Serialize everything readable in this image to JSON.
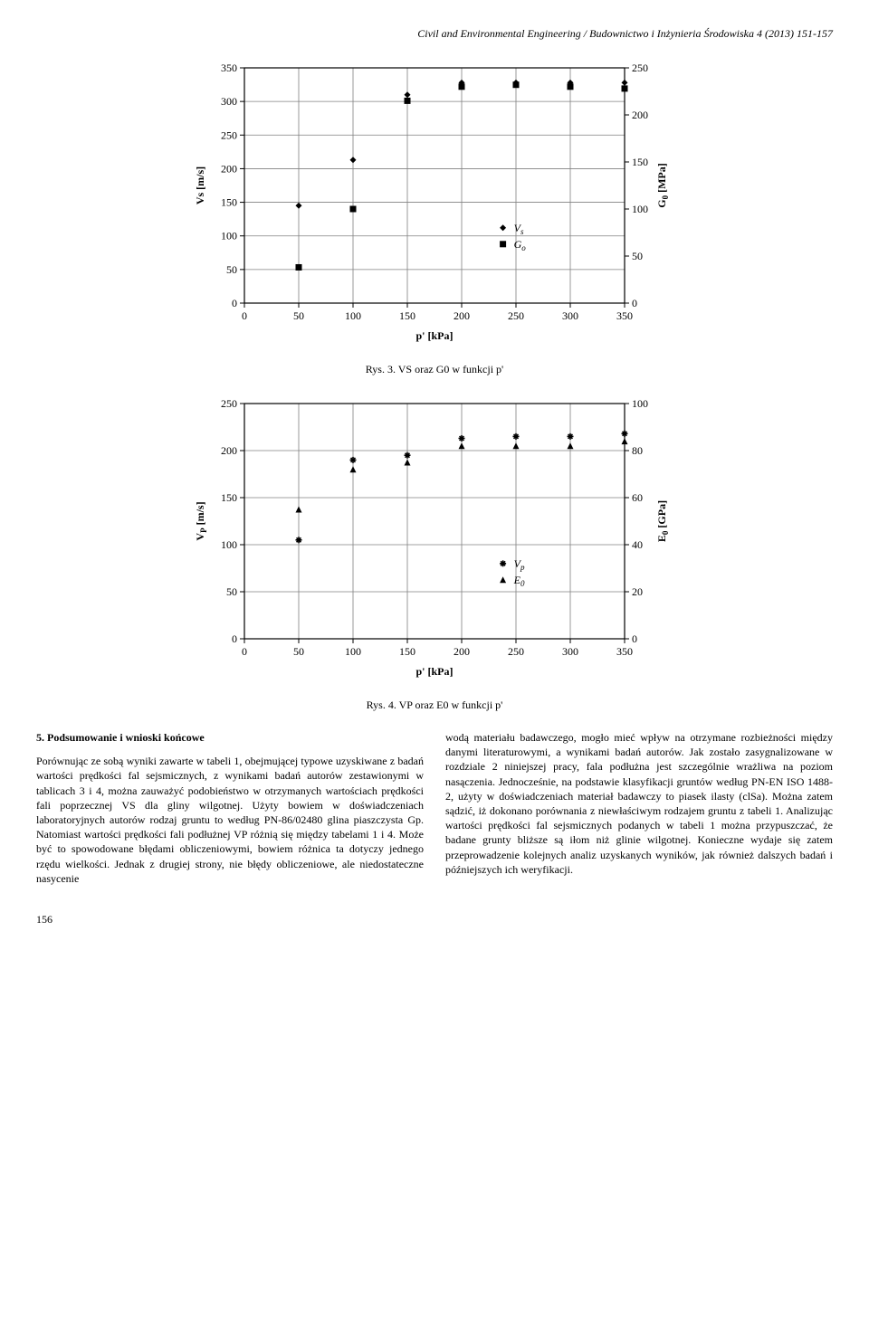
{
  "header": "Civil and Environmental Engineering / Budownictwo i Inżynieria Środowiska  4 (2013) 151-157",
  "fig3": {
    "caption": "Rys. 3. VS oraz G0 w funkcji p'",
    "xlabel": "p' [kPa]",
    "ylabel_left": "Vs [m/s]",
    "ylabel_right": "G0 [MPa]",
    "xlim": [
      0,
      350
    ],
    "xticks": [
      0,
      50,
      100,
      150,
      200,
      250,
      300,
      350
    ],
    "ylim_left": [
      0,
      350
    ],
    "yticks_left": [
      0,
      50,
      100,
      150,
      200,
      250,
      300,
      350
    ],
    "ylim_right": [
      0,
      250
    ],
    "yticks_right": [
      0,
      50,
      100,
      150,
      200,
      250
    ],
    "legend": {
      "vs": "Vs",
      "go": "Go"
    },
    "font_size_axis": 12,
    "font_size_ticks": 12,
    "grid_color": "#808080",
    "border_color": "#000000",
    "bg_color": "#ffffff",
    "vs_points": [
      {
        "x": 50,
        "y": 145
      },
      {
        "x": 100,
        "y": 213
      },
      {
        "x": 150,
        "y": 310
      },
      {
        "x": 200,
        "y": 328
      },
      {
        "x": 250,
        "y": 328
      },
      {
        "x": 300,
        "y": 328
      },
      {
        "x": 350,
        "y": 328
      }
    ],
    "go_points_right": [
      {
        "x": 50,
        "y": 38
      },
      {
        "x": 100,
        "y": 100
      },
      {
        "x": 150,
        "y": 215
      },
      {
        "x": 200,
        "y": 230
      },
      {
        "x": 250,
        "y": 232
      },
      {
        "x": 300,
        "y": 230
      },
      {
        "x": 350,
        "y": 228
      }
    ],
    "marker_size": 7
  },
  "fig4": {
    "caption": "Rys. 4. VP oraz E0 w funkcji p'",
    "xlabel": "p' [kPa]",
    "ylabel_left": "VP [m/s]",
    "ylabel_right": "E0 [GPa]",
    "xlim": [
      0,
      350
    ],
    "xticks": [
      0,
      50,
      100,
      150,
      200,
      250,
      300,
      350
    ],
    "ylim_left": [
      0,
      250
    ],
    "yticks_left": [
      0,
      50,
      100,
      150,
      200,
      250
    ],
    "ylim_right": [
      0,
      100
    ],
    "yticks_right": [
      0,
      20,
      40,
      60,
      80,
      100
    ],
    "legend": {
      "vp": "Vp",
      "e0": "E0"
    },
    "font_size_axis": 12,
    "font_size_ticks": 12,
    "grid_color": "#808080",
    "border_color": "#000000",
    "bg_color": "#ffffff",
    "vp_points": [
      {
        "x": 50,
        "y": 105
      },
      {
        "x": 100,
        "y": 190
      },
      {
        "x": 150,
        "y": 195
      },
      {
        "x": 200,
        "y": 213
      },
      {
        "x": 250,
        "y": 215
      },
      {
        "x": 300,
        "y": 215
      },
      {
        "x": 350,
        "y": 218
      }
    ],
    "e0_points_right": [
      {
        "x": 50,
        "y": 55
      },
      {
        "x": 100,
        "y": 72
      },
      {
        "x": 150,
        "y": 75
      },
      {
        "x": 200,
        "y": 82
      },
      {
        "x": 250,
        "y": 82
      },
      {
        "x": 300,
        "y": 82
      },
      {
        "x": 350,
        "y": 84
      }
    ],
    "marker_size": 7
  },
  "section5": {
    "title": "5. Podsumowanie i wnioski końcowe",
    "left": "Porównując ze sobą wyniki zawarte w tabeli 1, obejmującej typowe uzyskiwane z badań wartości prędkości fal sejsmicznych, z wynikami badań autorów zestawionymi w tablicach 3 i 4, można zauważyć podobieństwo w otrzymanych wartościach prędkości fali poprzecznej VS dla gliny wilgotnej. Użyty bowiem w doświadczeniach laboratoryjnych autorów rodzaj gruntu to według PN-86/02480 glina piaszczysta Gp. Natomiast wartości prędkości fali podłużnej VP różnią się między tabelami 1 i 4. Może być to spowodowane błędami obliczeniowymi, bowiem różnica ta dotyczy jednego rzędu wielkości. Jednak z drugiej strony, nie błędy obliczeniowe, ale niedostateczne nasycenie",
    "right": "wodą materiału badawczego, mogło mieć wpływ na otrzymane rozbieżności między danymi literaturowymi, a wynikami badań autorów. Jak zostało zasygnalizowane w rozdziale 2 niniejszej pracy, fala podłużna jest szczególnie wrażliwa na poziom nasączenia. Jednocześnie, na podstawie klasyfikacji gruntów według PN-EN ISO 1488-2, użyty w doświadczeniach materiał badawczy to piasek ilasty (clSa). Można zatem sądzić, iż dokonano porównania z niewłaściwym rodzajem gruntu z tabeli 1. Analizując wartości prędkości fal sejsmicznych podanych w tabeli 1 można przypuszczać, że badane grunty bliższe są iłom niż glinie wilgotnej. Konieczne wydaje się zatem przeprowadzenie kolejnych analiz uzyskanych wyników, jak również dalszych badań i późniejszych ich weryfikacji."
  },
  "page_number": "156"
}
